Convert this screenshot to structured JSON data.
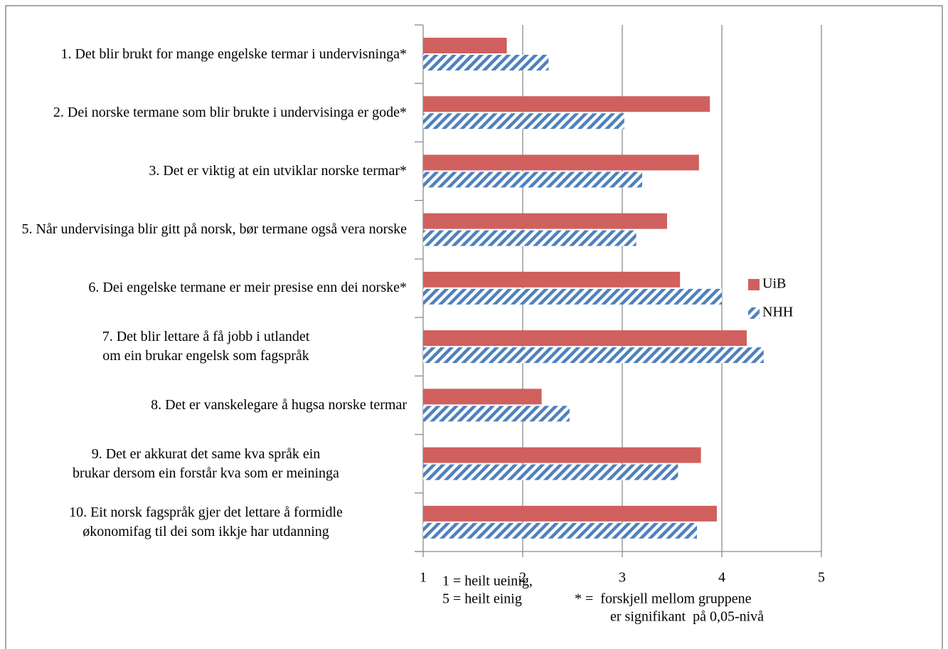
{
  "chart_data": {
    "type": "hbar",
    "categories": [
      "1. Det blir brukt for mange engelske termar i undervisninga*",
      "2. Dei norske termane som blir brukte i undervisinga er gode*",
      "3. Det er viktig at ein utviklar norske termar*",
      "5. Når undervisinga blir gitt på norsk, bør termane også vera norske",
      "6. Dei engelske termane er meir presise enn dei norske*",
      "7. Det blir lettare å få jobb i utlandet om ein brukar engelsk som fagspråk",
      "8. Det er vanskelegare å hugsa norske termar",
      "9. Det er akkurat det same kva språk ein brukar dersom ein forstår kva som er meininga",
      "10. Eit norsk fagspråk gjer det lettare å formidle økonomifag til dei som ikkje har utdanning"
    ],
    "series": [
      {
        "name": "UiB",
        "color": "#d0605e",
        "values": [
          1.84,
          3.88,
          3.77,
          3.45,
          3.58,
          4.25,
          2.19,
          3.79,
          3.95
        ]
      },
      {
        "name": "NHH",
        "color": "#4f81bd",
        "hatch": true,
        "values": [
          2.26,
          3.02,
          3.2,
          3.14,
          4.0,
          4.42,
          2.47,
          3.56,
          3.75
        ]
      }
    ],
    "xlim": [
      1,
      5
    ],
    "xticks": [
      1,
      2,
      3,
      4,
      5
    ],
    "grid": true,
    "legend": "right",
    "annotations": [
      "1 = heilt ueinig,",
      "5 = heilt einig",
      "* =  forskjell mellom gruppene",
      "er signifikant  på 0,05-nivå"
    ]
  }
}
